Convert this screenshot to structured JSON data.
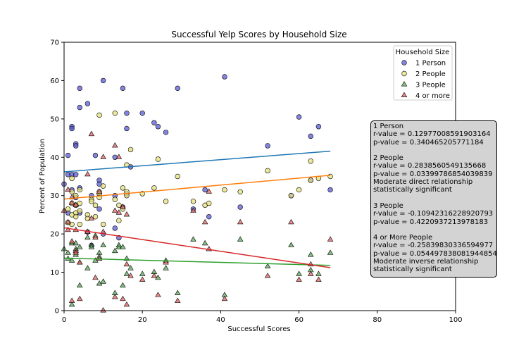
{
  "chart_data": {
    "type": "scatter",
    "title": "Successful Yelp Scores by Household Size",
    "xlabel": "Successful Scores",
    "ylabel": "Percent of Population",
    "xlim": [
      0,
      100
    ],
    "ylim": [
      0,
      70
    ],
    "x_ticks": [
      "0",
      "20",
      "40",
      "60",
      "80",
      "100"
    ],
    "y_ticks": [
      "0",
      "10",
      "20",
      "30",
      "40",
      "50",
      "60",
      "70"
    ],
    "grid": false,
    "legend": {
      "title": "Household Size",
      "placement": "top-right",
      "entries": [
        "1 Person",
        "2 People",
        "3 People",
        "4 or more"
      ]
    },
    "series": [
      {
        "name": "1 Person",
        "marker": "circle",
        "color": "#5b5bd6",
        "regression": {
          "x": [
            0,
            68
          ],
          "y": [
            36.2,
            41.6
          ],
          "color": "#1f77b4"
        },
        "points": [
          [
            0,
            33
          ],
          [
            1,
            40.5
          ],
          [
            1,
            35.5
          ],
          [
            1,
            25.5
          ],
          [
            2,
            48
          ],
          [
            2,
            47.5
          ],
          [
            2,
            31.5
          ],
          [
            2,
            35.5
          ],
          [
            3,
            43.5
          ],
          [
            3,
            43
          ],
          [
            3,
            35.5
          ],
          [
            3,
            29.5
          ],
          [
            3,
            27.5
          ],
          [
            4,
            58
          ],
          [
            4,
            53
          ],
          [
            4,
            32
          ],
          [
            4,
            25.5
          ],
          [
            6,
            54
          ],
          [
            6,
            20.5
          ],
          [
            7,
            17
          ],
          [
            7,
            30
          ],
          [
            8,
            40.5
          ],
          [
            9,
            34
          ],
          [
            9,
            33
          ],
          [
            9,
            30.5
          ],
          [
            9,
            26.5
          ],
          [
            10,
            60
          ],
          [
            10,
            20
          ],
          [
            13,
            40
          ],
          [
            13,
            21.5
          ],
          [
            13,
            30
          ],
          [
            14,
            19
          ],
          [
            15,
            58
          ],
          [
            15,
            27
          ],
          [
            16,
            51.5
          ],
          [
            16,
            47.5
          ],
          [
            16,
            30.5
          ],
          [
            17,
            37.5
          ],
          [
            20,
            51.5
          ],
          [
            23,
            49
          ],
          [
            24,
            48
          ],
          [
            26,
            46.5
          ],
          [
            29,
            58
          ],
          [
            33,
            26.5
          ],
          [
            36,
            31.5
          ],
          [
            37,
            24.5
          ],
          [
            41,
            61
          ],
          [
            45,
            27
          ],
          [
            52,
            43
          ],
          [
            58,
            30
          ],
          [
            60,
            50.5
          ],
          [
            63,
            34
          ],
          [
            63,
            45.5
          ],
          [
            65,
            48
          ],
          [
            68,
            31.5
          ]
        ]
      },
      {
        "name": "2 People",
        "marker": "circle",
        "color": "#e6e07a",
        "regression": {
          "x": [
            0,
            68
          ],
          "y": [
            29.1,
            35.3
          ],
          "color": "#ff7f0e"
        },
        "points": [
          [
            1,
            26.5
          ],
          [
            1,
            23
          ],
          [
            2,
            34.5
          ],
          [
            2,
            31
          ],
          [
            2,
            28
          ],
          [
            2,
            25
          ],
          [
            2,
            22.5
          ],
          [
            3,
            30
          ],
          [
            3,
            27.5
          ],
          [
            3,
            25.5
          ],
          [
            3,
            24.5
          ],
          [
            4,
            31.5
          ],
          [
            4,
            28
          ],
          [
            4,
            26
          ],
          [
            4,
            22.5
          ],
          [
            6,
            25
          ],
          [
            6,
            24
          ],
          [
            7,
            29
          ],
          [
            7,
            28.5
          ],
          [
            8,
            27.5
          ],
          [
            8,
            24.5
          ],
          [
            9,
            31
          ],
          [
            9,
            30.5
          ],
          [
            9,
            29.5
          ],
          [
            9,
            51
          ],
          [
            10,
            32.5
          ],
          [
            10,
            22.5
          ],
          [
            13,
            51.5
          ],
          [
            13,
            29
          ],
          [
            14,
            27.5
          ],
          [
            14,
            23.5
          ],
          [
            15,
            32
          ],
          [
            15,
            26.5
          ],
          [
            16,
            38
          ],
          [
            16,
            31
          ],
          [
            16,
            30
          ],
          [
            17,
            42
          ],
          [
            20,
            30.5
          ],
          [
            23,
            32
          ],
          [
            24,
            39.5
          ],
          [
            26,
            28.5
          ],
          [
            29,
            35
          ],
          [
            33,
            28.5
          ],
          [
            36,
            27.5
          ],
          [
            37,
            28
          ],
          [
            41,
            31.5
          ],
          [
            45,
            31
          ],
          [
            52,
            36.5
          ],
          [
            58,
            30
          ],
          [
            60,
            31.5
          ],
          [
            63,
            39
          ],
          [
            63,
            34
          ],
          [
            65,
            34.5
          ],
          [
            68,
            35
          ]
        ]
      },
      {
        "name": "3 People",
        "marker": "triangle",
        "color": "#5aa95a",
        "regression": {
          "x": [
            0,
            68
          ],
          "y": [
            13.7,
            11.8
          ],
          "color": "#2ca02c"
        },
        "points": [
          [
            0,
            16
          ],
          [
            1,
            15
          ],
          [
            1,
            13.5
          ],
          [
            2,
            17.5
          ],
          [
            2,
            13
          ],
          [
            2,
            1.5
          ],
          [
            3,
            17.5
          ],
          [
            3,
            16
          ],
          [
            3,
            14.5
          ],
          [
            4,
            16.5
          ],
          [
            4,
            12.5
          ],
          [
            4,
            6.5
          ],
          [
            6,
            19
          ],
          [
            6,
            11
          ],
          [
            7,
            17
          ],
          [
            7,
            16.5
          ],
          [
            8,
            19.5
          ],
          [
            8,
            13
          ],
          [
            9,
            15
          ],
          [
            9,
            14
          ],
          [
            9,
            7
          ],
          [
            10,
            17
          ],
          [
            10,
            7.5
          ],
          [
            13,
            15.5
          ],
          [
            13,
            4.5
          ],
          [
            14,
            16.5
          ],
          [
            14,
            17
          ],
          [
            15,
            16.5
          ],
          [
            15,
            6.5
          ],
          [
            16,
            13.5
          ],
          [
            16,
            9.5
          ],
          [
            17,
            11
          ],
          [
            20,
            9.5
          ],
          [
            23,
            10
          ],
          [
            24,
            8.5
          ],
          [
            26,
            11
          ],
          [
            26,
            13
          ],
          [
            29,
            4.5
          ],
          [
            33,
            18.5
          ],
          [
            36,
            17.5
          ],
          [
            41,
            4
          ],
          [
            45,
            18.5
          ],
          [
            52,
            11.5
          ],
          [
            58,
            17
          ],
          [
            60,
            9.5
          ],
          [
            63,
            14.5
          ],
          [
            63,
            10.5
          ],
          [
            65,
            9.5
          ],
          [
            68,
            15
          ]
        ]
      },
      {
        "name": "4 or more",
        "marker": "triangle",
        "color": "#e06060",
        "regression": {
          "x": [
            0,
            68
          ],
          "y": [
            21.6,
            11.2
          ],
          "color": "#d62728"
        },
        "points": [
          [
            0,
            26
          ],
          [
            1,
            31.5
          ],
          [
            1,
            23
          ],
          [
            1,
            21
          ],
          [
            2,
            29.5
          ],
          [
            2,
            28
          ],
          [
            2,
            18
          ],
          [
            2,
            2.5
          ],
          [
            3,
            27.5
          ],
          [
            3,
            21
          ],
          [
            3,
            15.5
          ],
          [
            3,
            15
          ],
          [
            4,
            12.5
          ],
          [
            4,
            3
          ],
          [
            6,
            35.5
          ],
          [
            6,
            20.5
          ],
          [
            7,
            46
          ],
          [
            7,
            24
          ],
          [
            8,
            19
          ],
          [
            8,
            8.5
          ],
          [
            9,
            31
          ],
          [
            9,
            13.5
          ],
          [
            10,
            40
          ],
          [
            10,
            20.5
          ],
          [
            10,
            0
          ],
          [
            13,
            43
          ],
          [
            13,
            26
          ],
          [
            13,
            3.5
          ],
          [
            14,
            40
          ],
          [
            14,
            25.5
          ],
          [
            15,
            27
          ],
          [
            15,
            3
          ],
          [
            16,
            25
          ],
          [
            16,
            12
          ],
          [
            16,
            1.5
          ],
          [
            17,
            9
          ],
          [
            20,
            8
          ],
          [
            23,
            9
          ],
          [
            24,
            4
          ],
          [
            26,
            12.5
          ],
          [
            29,
            2.5
          ],
          [
            33,
            26
          ],
          [
            36,
            23
          ],
          [
            37,
            16
          ],
          [
            37,
            31
          ],
          [
            41,
            3
          ],
          [
            45,
            23
          ],
          [
            52,
            9
          ],
          [
            58,
            23
          ],
          [
            60,
            8
          ],
          [
            63,
            12
          ],
          [
            63,
            9.5
          ],
          [
            65,
            8
          ],
          [
            68,
            18.5
          ]
        ]
      }
    ],
    "annotations": [
      "1 Person",
      "r-value = 0.12977008591903164",
      "p-value = 0.340465205771184",
      "",
      "2 People",
      "r-value = 0.2838560549135668",
      "p-value = 0.03399786854039839",
      "Moderate direct relationship",
      "statistically significant",
      "",
      "3 People",
      "r-value = -0.10942316228920793",
      "p-value = 0.4220937213978183",
      "",
      "4 or More People",
      "r-value = -0.25839830336594977",
      "p-value = 0.054497838081944854",
      "Moderate inverse relationship",
      "statistically significant"
    ]
  }
}
